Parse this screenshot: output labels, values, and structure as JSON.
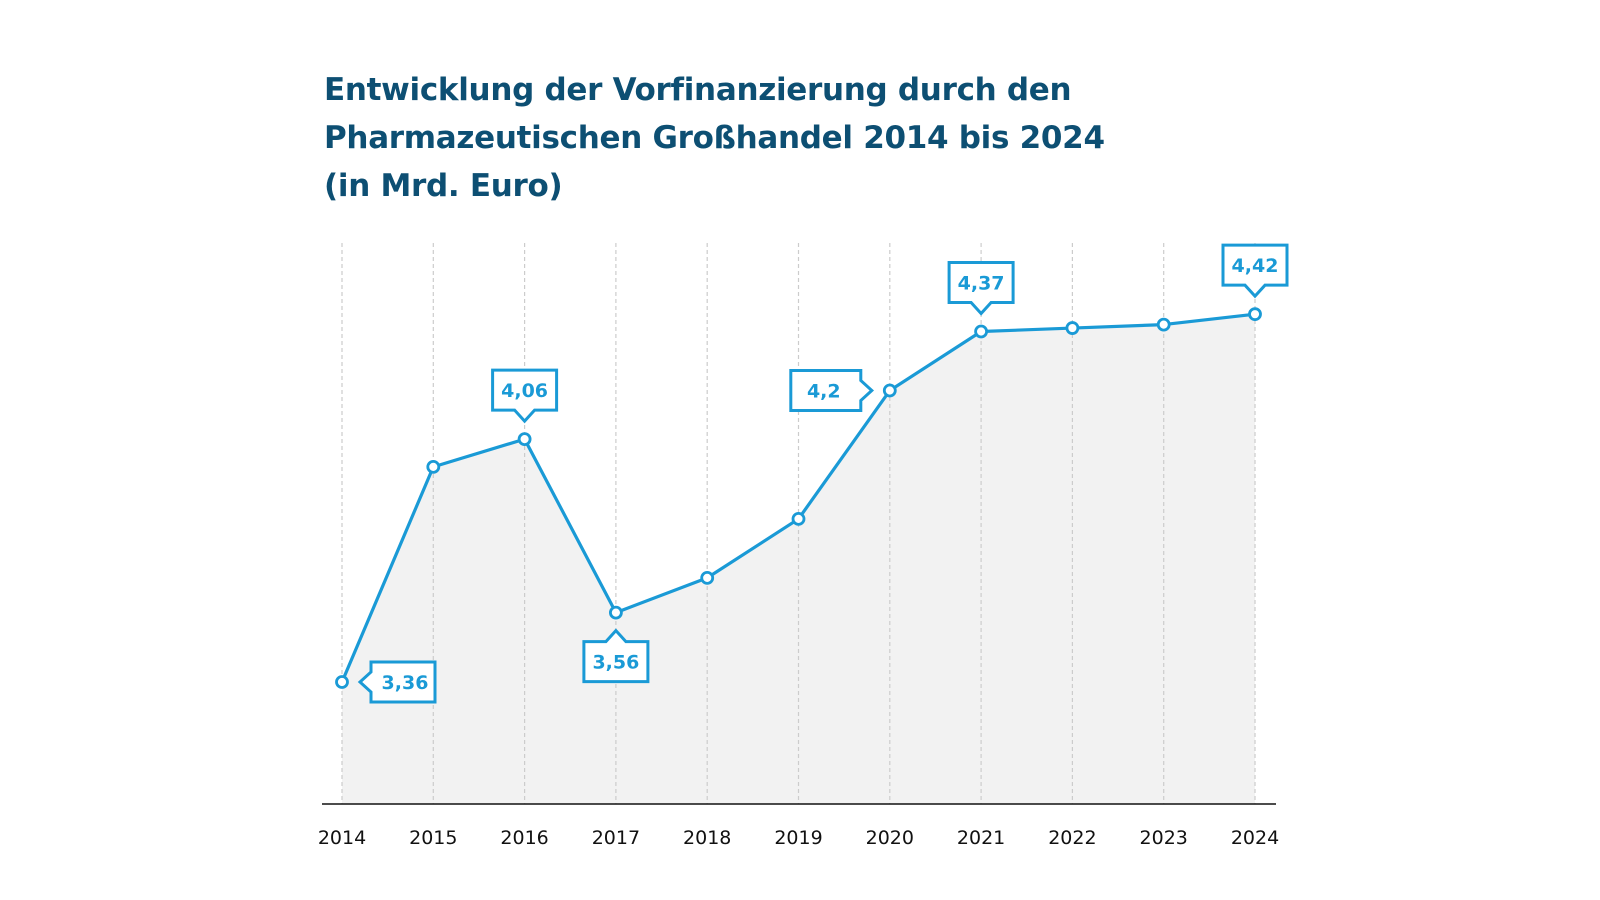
{
  "colors": {
    "title": "#0d4f73",
    "line": "#1a9ad6",
    "area": "#f2f2f2",
    "grid": "#cccccc",
    "axis": "#111111"
  },
  "chart_data": {
    "type": "area",
    "title_lines": [
      "Entwicklung der Vorfinanzierung durch den",
      "Pharmazeutischen Großhandel 2014 bis 2024",
      "(in Mrd. Euro)"
    ],
    "title": "Entwicklung der Vorfinanzierung durch den Pharmazeutischen Großhandel 2014 bis 2024 (in Mrd. Euro)",
    "xlabel": "",
    "ylabel": "",
    "categories": [
      "2014",
      "2015",
      "2016",
      "2017",
      "2018",
      "2019",
      "2020",
      "2021",
      "2022",
      "2023",
      "2024"
    ],
    "series": [
      {
        "name": "Vorfinanzierung (Mrd. Euro)",
        "values": [
          3.36,
          3.98,
          4.06,
          3.56,
          3.66,
          3.83,
          4.2,
          4.37,
          4.38,
          4.39,
          4.42
        ]
      }
    ],
    "ylim": [
      2.99,
      4.42
    ],
    "grid": "vertical-dashed",
    "legend": "none",
    "annotations": [
      {
        "category": "2014",
        "text": "3,36",
        "placement": "right"
      },
      {
        "category": "2016",
        "text": "4,06",
        "placement": "top"
      },
      {
        "category": "2017",
        "text": "3,56",
        "placement": "bottom"
      },
      {
        "category": "2020",
        "text": "4,2",
        "placement": "left"
      },
      {
        "category": "2021",
        "text": "4,37",
        "placement": "top"
      },
      {
        "category": "2024",
        "text": "4,42",
        "placement": "top"
      }
    ]
  }
}
